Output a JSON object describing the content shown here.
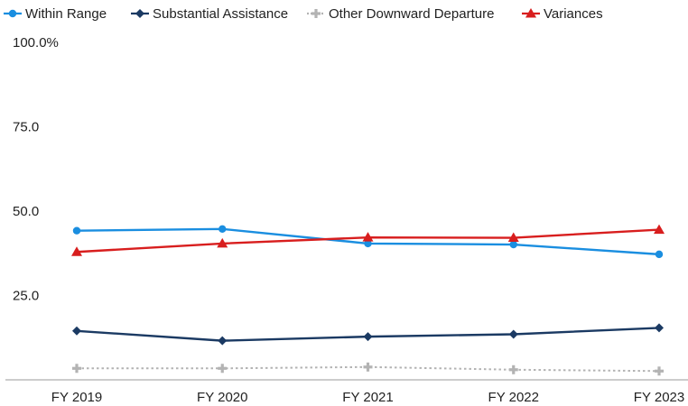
{
  "chart_data": {
    "type": "line",
    "categories": [
      "FY 2019",
      "FY 2020",
      "FY 2021",
      "FY 2022",
      "FY 2023"
    ],
    "ylim": [
      0,
      100
    ],
    "yticks": [
      {
        "value": 100,
        "label": "100.0%"
      },
      {
        "value": 75,
        "label": "75.0"
      },
      {
        "value": 50,
        "label": "50.0"
      },
      {
        "value": 25,
        "label": "25.0"
      }
    ],
    "legend_position": "top-left",
    "grid": false,
    "series": [
      {
        "name": "Within Range",
        "color": "#1a8ee0",
        "marker": "circle",
        "dash": "solid",
        "values": [
          44.2,
          44.7,
          40.4,
          40.1,
          37.2
        ]
      },
      {
        "name": "Substantial Assistance",
        "color": "#1b3a63",
        "marker": "diamond",
        "dash": "solid",
        "values": [
          14.5,
          11.6,
          12.8,
          13.5,
          15.4
        ]
      },
      {
        "name": "Other Downward Departure",
        "color": "#b3b3b3",
        "marker": "plus",
        "dash": "dotted",
        "values": [
          3.4,
          3.4,
          3.8,
          3.0,
          2.6
        ]
      },
      {
        "name": "Variances",
        "color": "#d81e1e",
        "marker": "triangle",
        "dash": "solid",
        "values": [
          37.9,
          40.4,
          42.2,
          42.1,
          44.5
        ]
      }
    ]
  }
}
